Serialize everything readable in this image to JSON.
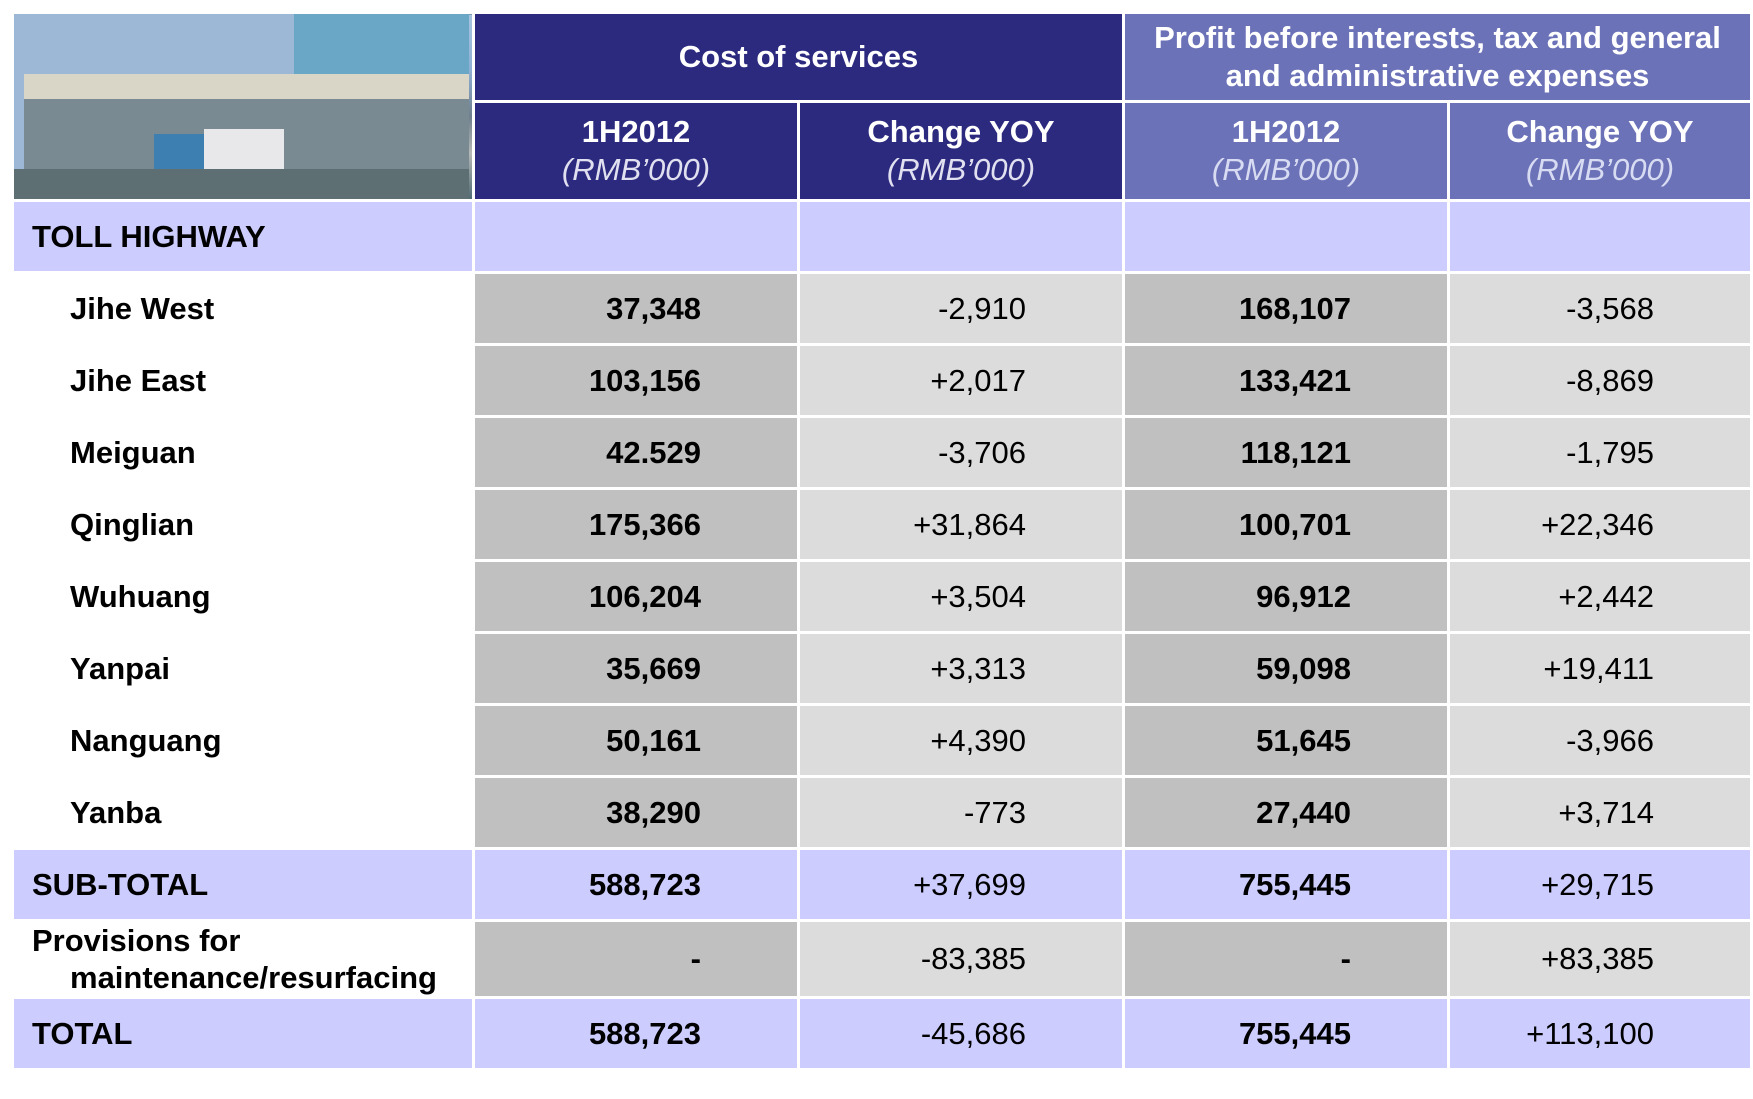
{
  "header": {
    "groups": [
      "Cost of services",
      "Profit before interests, tax  and general and administrative expenses"
    ],
    "columns": [
      {
        "period": "1H2012",
        "unit": "(RMB’000)"
      },
      {
        "period": "Change YOY",
        "unit": "(RMB’000)"
      },
      {
        "period": "1H2012",
        "unit": "(RMB’000)"
      },
      {
        "period": "Change YOY",
        "unit": "(RMB’000)"
      }
    ]
  },
  "section_label": "TOLL HIGHWAY",
  "rows": [
    {
      "name": "Jihe West",
      "values": [
        "37,348",
        "-2,910",
        "168,107",
        "-3,568"
      ]
    },
    {
      "name": "Jihe East",
      "values": [
        "103,156",
        "+2,017",
        "133,421",
        "-8,869"
      ]
    },
    {
      "name": "Meiguan",
      "values": [
        "42.529",
        "-3,706",
        "118,121",
        "-1,795"
      ]
    },
    {
      "name": "Qinglian",
      "values": [
        "175,366",
        "+31,864",
        "100,701",
        "+22,346"
      ]
    },
    {
      "name": "Wuhuang",
      "values": [
        "106,204",
        "+3,504",
        "96,912",
        "+2,442"
      ]
    },
    {
      "name": "Yanpai",
      "values": [
        "35,669",
        "+3,313",
        "59,098",
        "+19,411"
      ]
    },
    {
      "name": "Nanguang",
      "values": [
        "50,161",
        "+4,390",
        "51,645",
        "-3,966"
      ]
    },
    {
      "name": "Yanba",
      "values": [
        "38,290",
        "-773",
        "27,440",
        "+3,714"
      ]
    }
  ],
  "subtotal": {
    "name": "SUB-TOTAL",
    "values": [
      "588,723",
      "+37,699",
      "755,445",
      "+29,715"
    ]
  },
  "provisions": {
    "name": "Provisions for maintenance/resurfacing",
    "values": [
      "-",
      "-83,385",
      "-",
      "+83,385"
    ]
  },
  "total": {
    "name": "TOTAL",
    "values": [
      "588,723",
      "-45,686",
      "755,445",
      "+113,100"
    ]
  }
}
